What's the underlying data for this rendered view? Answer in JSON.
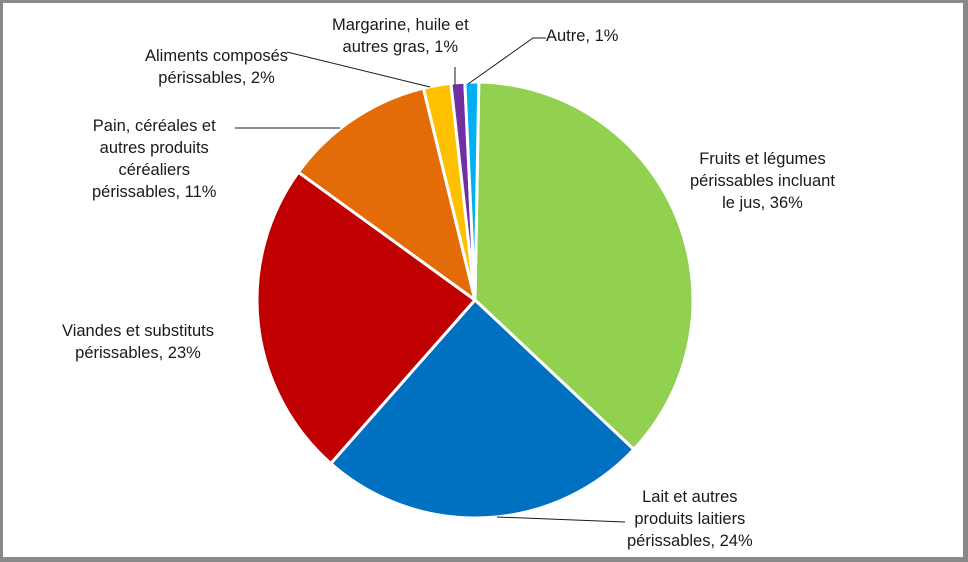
{
  "chart_data": {
    "type": "pie",
    "title": "",
    "start_angle_deg": 1,
    "direction": "clockwise",
    "slice_gap_color": "#ffffff",
    "slices": [
      {
        "label": "Fruits et légumes périssables incluant le jus",
        "value": 36,
        "display": "Fruits et légumes|périssables incluant|le jus, 36%",
        "color": "#92D050"
      },
      {
        "label": "Lait et autres produits laitiers périssables",
        "value": 24,
        "display": "Lait et autres|produits laitiers|périssables, 24%",
        "color": "#0070C0"
      },
      {
        "label": "Viandes et substituts périssables",
        "value": 23,
        "display": "Viandes et substituts|périssables, 23%",
        "color": "#C00000"
      },
      {
        "label": "Pain, céréales et autres produits céréaliers périssables",
        "value": 11,
        "display": "Pain, céréales et|autres produits|céréaliers|périssables, 11%",
        "color": "#E36C09"
      },
      {
        "label": "Aliments composés périssables",
        "value": 2,
        "display": "Aliments composés|périssables, 2%",
        "color": "#FFC000"
      },
      {
        "label": "Margarine, huile et autres gras",
        "value": 1,
        "display": "Margarine, huile et|autres gras, 1%",
        "color": "#7030A0"
      },
      {
        "label": "Autre",
        "value": 1,
        "display": "Autre, 1%",
        "color": "#00B0F0"
      }
    ],
    "legend": "none (data labels on chart)"
  },
  "labels": {
    "fruits": [
      "Fruits et légumes",
      "périssables incluant",
      "le jus, 36%"
    ],
    "lait": [
      "Lait et autres",
      "produits laitiers",
      "périssables, 24%"
    ],
    "viandes": [
      "Viandes et substituts",
      "périssables, 23%"
    ],
    "pain": [
      "Pain, céréales et",
      "autres produits",
      "céréaliers",
      "périssables, 11%"
    ],
    "aliments": [
      "Aliments composés",
      "périssables, 2%"
    ],
    "margarine": [
      "Margarine, huile et",
      "autres gras, 1%"
    ],
    "autre": [
      "Autre, 1%"
    ]
  }
}
